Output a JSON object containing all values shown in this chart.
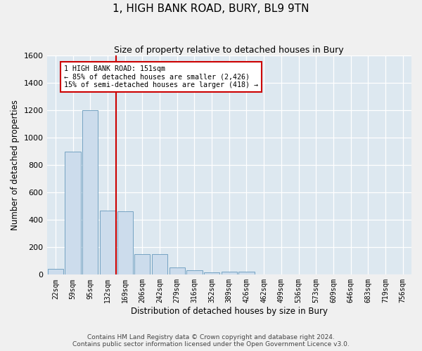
{
  "title": "1, HIGH BANK ROAD, BURY, BL9 9TN",
  "subtitle": "Size of property relative to detached houses in Bury",
  "xlabel": "Distribution of detached houses by size in Bury",
  "ylabel": "Number of detached properties",
  "bar_color": "#ccdcec",
  "bar_edge_color": "#6699bb",
  "background_color": "#dde8f0",
  "grid_color": "#ffffff",
  "categories": [
    "22sqm",
    "59sqm",
    "95sqm",
    "132sqm",
    "169sqm",
    "206sqm",
    "242sqm",
    "279sqm",
    "316sqm",
    "352sqm",
    "389sqm",
    "426sqm",
    "462sqm",
    "499sqm",
    "536sqm",
    "573sqm",
    "609sqm",
    "646sqm",
    "683sqm",
    "719sqm",
    "756sqm"
  ],
  "values": [
    45,
    900,
    1200,
    470,
    465,
    150,
    150,
    55,
    30,
    15,
    20,
    20,
    0,
    0,
    0,
    0,
    0,
    0,
    0,
    0,
    0
  ],
  "ylim": [
    0,
    1600
  ],
  "yticks": [
    0,
    200,
    400,
    600,
    800,
    1000,
    1200,
    1400,
    1600
  ],
  "vline_pos": 3.48,
  "property_line_label": "1 HIGH BANK ROAD: 151sqm",
  "annotation_line1": "← 85% of detached houses are smaller (2,426)",
  "annotation_line2": "15% of semi-detached houses are larger (418) →",
  "annotation_box_color": "#ffffff",
  "annotation_box_edge_color": "#cc0000",
  "vline_color": "#cc0000",
  "footer1": "Contains HM Land Registry data © Crown copyright and database right 2024.",
  "footer2": "Contains public sector information licensed under the Open Government Licence v3.0."
}
